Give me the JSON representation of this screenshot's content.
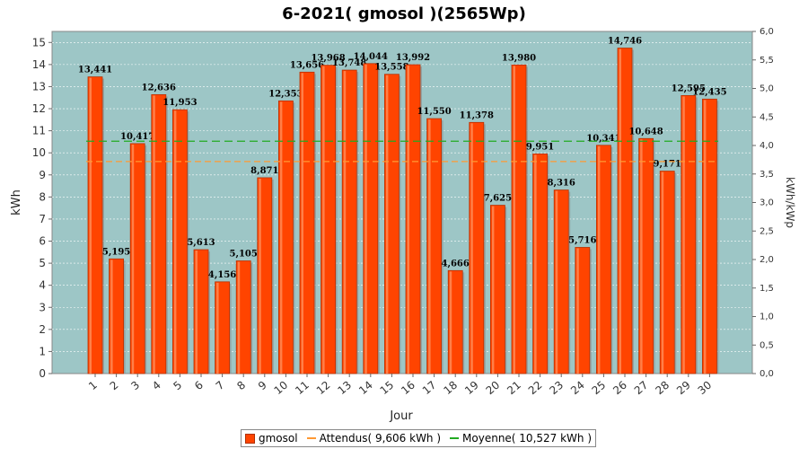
{
  "chart_data": {
    "type": "bar",
    "title": "6-2021( gmosol )(2565Wp)",
    "xlabel": "Jour",
    "ylabel": "kWh",
    "ylabel_right": "kWh/kWp",
    "ylim": [
      0,
      15.5
    ],
    "ylim_right": [
      0,
      6.0
    ],
    "yticks": [
      "0",
      "1",
      "2",
      "3",
      "4",
      "5",
      "6",
      "7",
      "8",
      "9",
      "10",
      "11",
      "12",
      "13",
      "14",
      "15"
    ],
    "yticks_right": [
      "0,0",
      "0,5",
      "1,0",
      "1,5",
      "2,0",
      "2,5",
      "3,0",
      "3,5",
      "4,0",
      "4,5",
      "5,0",
      "5,5",
      "6,0"
    ],
    "categories": [
      "1",
      "2",
      "3",
      "4",
      "5",
      "6",
      "7",
      "8",
      "9",
      "10",
      "11",
      "12",
      "13",
      "14",
      "15",
      "16",
      "17",
      "18",
      "19",
      "20",
      "21",
      "22",
      "23",
      "24",
      "25",
      "26",
      "27",
      "28",
      "29",
      "30"
    ],
    "series": [
      {
        "name": "gmosol",
        "values": [
          13.441,
          5.195,
          10.417,
          12.636,
          11.953,
          5.613,
          4.156,
          5.105,
          8.871,
          12.353,
          13.656,
          13.968,
          13.748,
          14.044,
          13.558,
          13.992,
          11.55,
          4.666,
          11.378,
          7.625,
          13.98,
          9.951,
          8.316,
          5.716,
          10.341,
          14.746,
          10.648,
          9.171,
          12.595,
          12.435
        ],
        "labels": [
          "13,441",
          "5,195",
          "10,417",
          "12,636",
          "11,953",
          "5,613",
          "4,156",
          "5,105",
          "8,871",
          "12,353",
          "13,656",
          "13,968",
          "13,748",
          "14,044",
          "13,558",
          "13,992",
          "11,550",
          "4,666",
          "11,378",
          "7,625",
          "13,980",
          "9,951",
          "8,316",
          "5,716",
          "10,341",
          "14,746",
          "10,648",
          "9,171",
          "12,595",
          "12,435"
        ],
        "color": "#ff4400"
      }
    ],
    "reference_lines": [
      {
        "name": "Attendus( 9,606 kWh )",
        "value": 9.606,
        "color": "#ff9933"
      },
      {
        "name": "Moyenne( 10,527 kWh )",
        "value": 10.527,
        "color": "#22aa22"
      }
    ],
    "plot_background": "#9dc6c6",
    "grid": true,
    "legend_position": "bottom-center"
  }
}
